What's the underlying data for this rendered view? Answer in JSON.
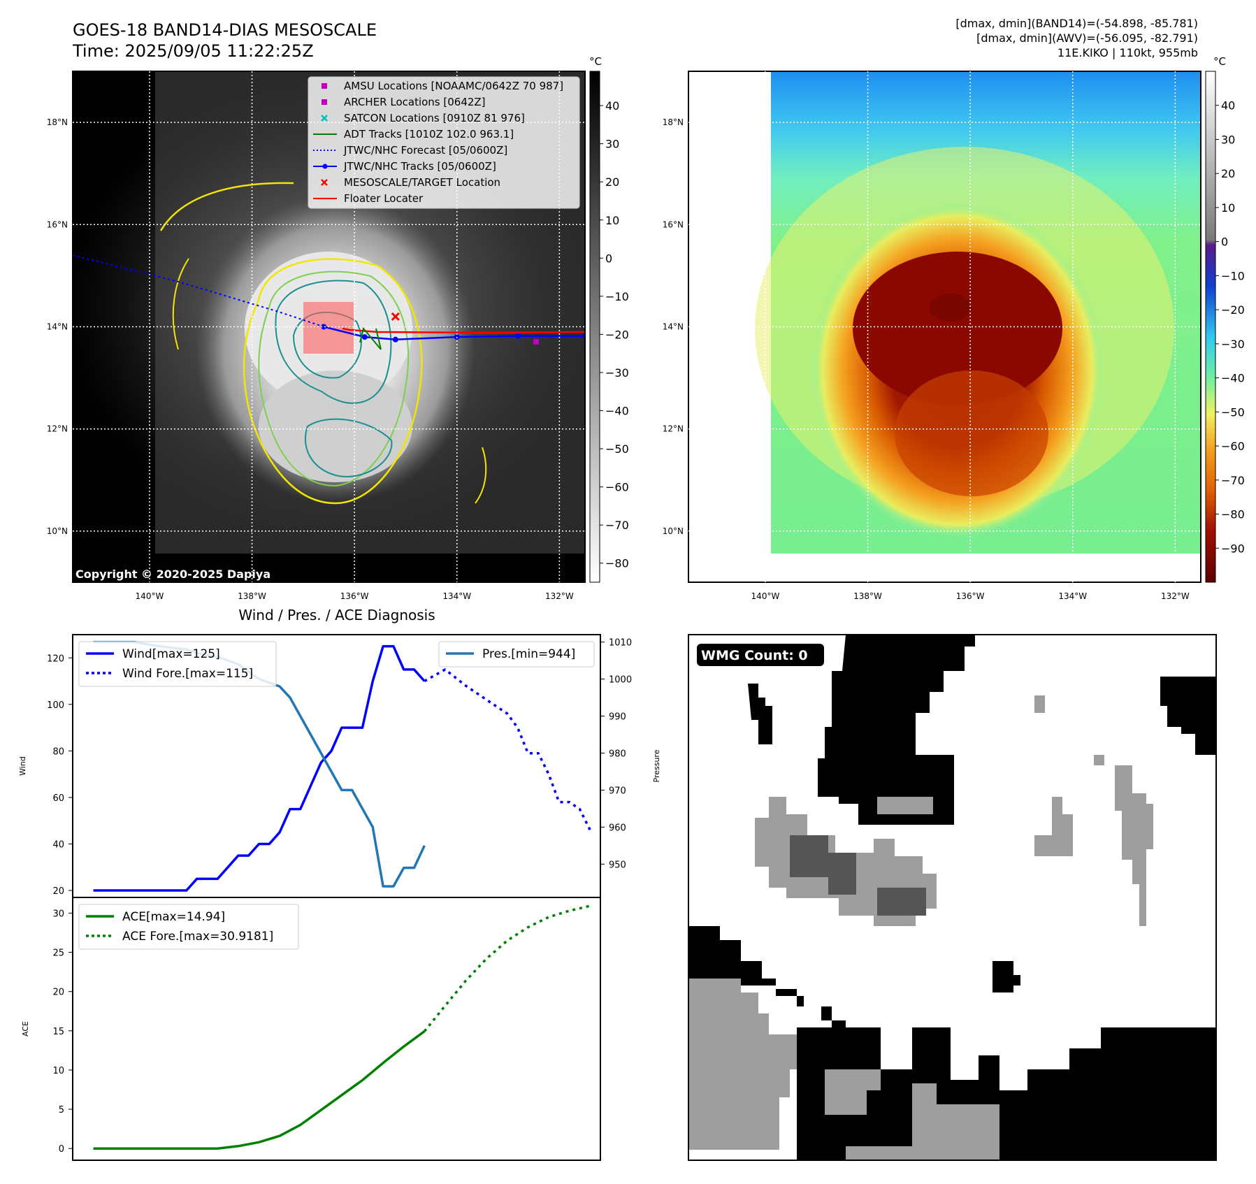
{
  "header": {
    "title_line1": "GOES-18 BAND14-DIAS MESOSCALE",
    "title_line2": "Time: 2025/09/05 11:22:25Z",
    "info_line1": "[dmax, dmin](BAND14)=(-54.898, -85.781)",
    "info_line2": "[dmax, dmin](AWV)=(-56.095, -82.791)",
    "info_line3": "11E.KIKO | 110kt, 955mb"
  },
  "colors": {
    "wind": "#0000ff",
    "pres": "#1f77b4",
    "ace": "#008000",
    "red": "#ff0000",
    "magenta": "#bf00bf",
    "cyan": "#00bfbf",
    "yellow": "#f2e600",
    "teal": "#1a8f8f",
    "lightgreen": "#7fcf4f"
  },
  "map_common": {
    "lon_ticks": [
      "140°W",
      "138°W",
      "136°W",
      "134°W",
      "132°W"
    ],
    "lon_values": [
      -140,
      -138,
      -136,
      -134,
      -132
    ],
    "lat_ticks": [
      "18°N",
      "16°N",
      "14°N",
      "12°N",
      "10°N"
    ],
    "lat_values": [
      18,
      16,
      14,
      12,
      10
    ],
    "lon_range": [
      -141.5,
      -131.5
    ],
    "lat_range": [
      9.0,
      19.0
    ]
  },
  "ir_panel": {
    "colorbar_unit": "°C",
    "colorbar_ticks": [
      "40",
      "30",
      "20",
      "10",
      "0",
      "−10",
      "−20",
      "−30",
      "−40",
      "−50",
      "−60",
      "−70",
      "−80"
    ],
    "colorbar_values": [
      40,
      30,
      20,
      10,
      0,
      -10,
      -20,
      -30,
      -40,
      -50,
      -60,
      -70,
      -80
    ],
    "colorbar_range": [
      -85,
      49
    ],
    "copyright": "Copyright © 2020-2025 Dapiya",
    "legend": [
      {
        "label": "AMSU Locations [NOAAMC/0642Z 70 987]",
        "marker": "square",
        "color": "#bf00bf"
      },
      {
        "label": "ARCHER Locations [0642Z]",
        "marker": "square",
        "color": "#bf00bf"
      },
      {
        "label": "SATCON Locations [0910Z 81 976]",
        "marker": "x",
        "color": "#00bfbf"
      },
      {
        "label": "ADT Tracks [1010Z 102.0 963.1]",
        "marker": "line",
        "color": "#008000"
      },
      {
        "label": "JTWC/NHC Forecast [05/0600Z]",
        "marker": "dotted",
        "color": "#0000ff"
      },
      {
        "label": "JTWC/NHC Tracks [05/0600Z]",
        "marker": "line-dot",
        "color": "#0000ff"
      },
      {
        "label": "MESOSCALE/TARGET Location",
        "marker": "x",
        "color": "#ff0000"
      },
      {
        "label": "Floater Locater",
        "marker": "line",
        "color": "#ff0000"
      }
    ],
    "forecast_track": [
      [
        -141.5,
        15.4
      ],
      [
        -139.5,
        14.9
      ],
      [
        -137.5,
        14.3
      ],
      [
        -136.6,
        14.0
      ]
    ],
    "best_track": [
      [
        -136.6,
        14.0
      ],
      [
        -135.8,
        13.8
      ],
      [
        -135.2,
        13.75
      ],
      [
        -134.0,
        13.8
      ],
      [
        -132.8,
        13.82
      ],
      [
        -131.5,
        13.82
      ]
    ],
    "target_location": [
      -135.2,
      14.2
    ]
  },
  "awv_panel": {
    "colorbar_unit": "°C",
    "colorbar_ticks": [
      "40",
      "30",
      "20",
      "10",
      "0",
      "−10",
      "−20",
      "−30",
      "−40",
      "−50",
      "−60",
      "−70",
      "−80",
      "−90"
    ],
    "colorbar_values": [
      40,
      30,
      20,
      10,
      0,
      -10,
      -20,
      -30,
      -40,
      -50,
      -60,
      -70,
      -80,
      -90
    ],
    "colorbar_range": [
      -100,
      50
    ]
  },
  "chart_data": [
    {
      "type": "line",
      "title": "Wind / Pres. / ACE Diagnosis",
      "ylabel": "Wind",
      "ylabel_right": "Pressure",
      "ylim": [
        17,
        130
      ],
      "ylim_right": [
        941,
        1012
      ],
      "yticks": [
        20,
        40,
        60,
        80,
        100,
        120
      ],
      "yticks_right": [
        950,
        960,
        970,
        980,
        990,
        1000,
        1010
      ],
      "xlim": [
        -2,
        49
      ],
      "series": [
        {
          "name": "Wind[max=125]",
          "style": "solid",
          "axis": "left",
          "x": [
            0,
            9,
            10,
            11,
            12,
            13,
            14,
            15,
            16,
            17,
            18,
            19,
            20,
            21,
            22,
            23,
            24,
            25,
            26,
            27,
            28,
            29,
            30,
            31,
            32
          ],
          "values": [
            20,
            20,
            25,
            25,
            25,
            30,
            35,
            35,
            40,
            40,
            45,
            55,
            55,
            65,
            75,
            80,
            90,
            90,
            90,
            110,
            125,
            125,
            115,
            115,
            110
          ]
        },
        {
          "name": "Wind Fore.[max=115]",
          "style": "dotted",
          "axis": "left",
          "x": [
            32,
            34,
            36,
            38,
            40,
            41,
            42,
            43,
            44,
            45,
            46,
            47,
            48
          ],
          "values": [
            110,
            115,
            108,
            102,
            96,
            90,
            79,
            79,
            70,
            58,
            58,
            55,
            46
          ]
        },
        {
          "name": "Pres.[min=944]",
          "style": "solid",
          "axis": "right",
          "x": [
            0,
            4,
            6,
            9,
            10,
            12,
            14,
            15,
            16,
            18,
            19,
            20,
            22,
            24,
            25,
            27,
            28,
            29,
            30,
            31,
            32
          ],
          "values": [
            1010,
            1010,
            1009,
            1008,
            1007,
            1006,
            1004,
            1002,
            1000,
            998,
            995,
            990,
            980,
            970,
            970,
            960,
            944,
            944,
            949,
            949,
            955
          ]
        }
      ]
    },
    {
      "type": "line",
      "ylabel": "ACE",
      "ylim": [
        -1.5,
        32
      ],
      "yticks": [
        0,
        5,
        10,
        15,
        20,
        25,
        30
      ],
      "xlim": [
        -2,
        49
      ],
      "series": [
        {
          "name": "ACE[max=14.94]",
          "style": "solid",
          "x": [
            0,
            12,
            14,
            16,
            18,
            20,
            22,
            24,
            26,
            27,
            28,
            30,
            32
          ],
          "values": [
            0,
            0,
            0.3,
            0.8,
            1.6,
            3.0,
            4.9,
            6.8,
            8.7,
            9.8,
            10.9,
            13.0,
            14.94
          ]
        },
        {
          "name": "ACE Fore.[max=30.9181]",
          "style": "dotted",
          "x": [
            32,
            34,
            36,
            38,
            40,
            42,
            44,
            46,
            48
          ],
          "values": [
            14.94,
            18.2,
            21.4,
            24.2,
            26.5,
            28.2,
            29.5,
            30.3,
            30.92
          ]
        }
      ]
    }
  ],
  "wmg_panel": {
    "label": "WMG Count: 0"
  }
}
